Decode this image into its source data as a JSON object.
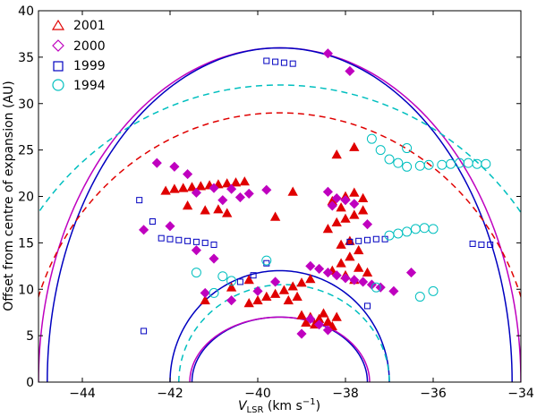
{
  "chart_data": {
    "type": "scatter",
    "title": "",
    "xlabel_main": "V",
    "xlabel_sub": "LSR",
    "xlabel_unit": " (km s",
    "xlabel_exp": "−1",
    "xlabel_close": ")",
    "ylabel": "Offset from centre of expansion (AU)",
    "xlim": [
      -45,
      -34
    ],
    "ylim": [
      0,
      40
    ],
    "xticks": [
      -44,
      -42,
      -40,
      -38,
      -36,
      -34
    ],
    "xtick_labels": [
      "−44",
      "−42",
      "−40",
      "−38",
      "−36",
      "−34"
    ],
    "yticks": [
      0,
      5,
      10,
      15,
      20,
      25,
      30,
      35,
      40
    ],
    "ytick_labels": [
      "0",
      "5",
      "10",
      "15",
      "20",
      "25",
      "30",
      "35",
      "40"
    ],
    "legend_position": "top-left",
    "legend": [
      {
        "label": "2001",
        "marker": "triangle",
        "color": "#e00000"
      },
      {
        "label": "2000",
        "marker": "diamond",
        "color": "#bf00bf"
      },
      {
        "label": "1999",
        "marker": "square",
        "color": "#0000c0"
      },
      {
        "label": "1994",
        "marker": "circle",
        "color": "#00bfbf"
      }
    ],
    "curves": [
      {
        "name": "outer-ellipse-magenta",
        "color": "#bf00bf",
        "style": "solid",
        "center": -39.5,
        "half_width": 5.5,
        "height": 36
      },
      {
        "name": "outer-ellipse-blue",
        "color": "#0000c0",
        "style": "solid",
        "center": -39.5,
        "half_width": 5.3,
        "height": 36
      },
      {
        "name": "outer-ellipse-cyan",
        "color": "#00bfbf",
        "style": "dashed",
        "center": -39.5,
        "half_width": 6.7,
        "height": 32
      },
      {
        "name": "outer-ellipse-red",
        "color": "#e00000",
        "style": "dashed",
        "center": -39.5,
        "half_width": 5.8,
        "height": 29
      },
      {
        "name": "inner-ellipse-blue",
        "color": "#0000c0",
        "style": "solid",
        "center": -39.5,
        "half_width": 2.5,
        "height": 12
      },
      {
        "name": "inner-ellipse-cyan",
        "color": "#00bfbf",
        "style": "dashed",
        "center": -39.4,
        "half_width": 2.4,
        "height": 10.5
      },
      {
        "name": "inner-ellipse-blue-small",
        "color": "#0000c0",
        "style": "solid",
        "center": -39.5,
        "half_width": 2.0,
        "height": 7
      },
      {
        "name": "inner-ellipse-magenta-small",
        "color": "#bf00bf",
        "style": "solid",
        "center": -39.5,
        "half_width": 2.05,
        "height": 7
      }
    ],
    "series": [
      {
        "name": "2001",
        "marker": "triangle",
        "color": "#e00000",
        "points": [
          [
            -42.1,
            20.6
          ],
          [
            -41.9,
            20.8
          ],
          [
            -41.7,
            20.9
          ],
          [
            -41.5,
            21.0
          ],
          [
            -41.3,
            21.1
          ],
          [
            -41.1,
            21.2
          ],
          [
            -40.9,
            21.3
          ],
          [
            -40.7,
            21.4
          ],
          [
            -40.5,
            21.5
          ],
          [
            -40.3,
            21.6
          ],
          [
            -41.6,
            19.0
          ],
          [
            -41.2,
            18.5
          ],
          [
            -40.9,
            18.6
          ],
          [
            -40.7,
            18.2
          ],
          [
            -38.4,
            6.5
          ],
          [
            -38.6,
            6.8
          ],
          [
            -38.8,
            7.0
          ],
          [
            -39.0,
            7.2
          ],
          [
            -38.2,
            7.0
          ],
          [
            -38.5,
            7.4
          ],
          [
            -38.7,
            6.2
          ],
          [
            -38.3,
            6.0
          ],
          [
            -38.9,
            6.4
          ],
          [
            -39.6,
            9.5
          ],
          [
            -39.4,
            9.9
          ],
          [
            -39.2,
            10.3
          ],
          [
            -39.0,
            10.7
          ],
          [
            -38.8,
            11.1
          ],
          [
            -39.8,
            9.2
          ],
          [
            -40.0,
            8.8
          ],
          [
            -40.2,
            8.5
          ],
          [
            -39.3,
            8.8
          ],
          [
            -39.1,
            9.2
          ],
          [
            -38.3,
            12.0
          ],
          [
            -38.1,
            12.8
          ],
          [
            -37.9,
            13.5
          ],
          [
            -37.7,
            12.3
          ],
          [
            -37.5,
            11.8
          ],
          [
            -38.0,
            11.5
          ],
          [
            -37.8,
            11.0
          ],
          [
            -38.4,
            16.5
          ],
          [
            -38.2,
            17.2
          ],
          [
            -38.0,
            17.6
          ],
          [
            -37.8,
            18.0
          ],
          [
            -37.6,
            18.5
          ],
          [
            -38.3,
            19.5
          ],
          [
            -38.0,
            20.0
          ],
          [
            -37.8,
            20.4
          ],
          [
            -37.6,
            19.8
          ],
          [
            -38.1,
            18.8
          ],
          [
            -37.9,
            15.2
          ],
          [
            -38.1,
            14.8
          ],
          [
            -37.7,
            14.2
          ],
          [
            -40.6,
            10.2
          ],
          [
            -40.2,
            11.0
          ],
          [
            -41.2,
            8.8
          ],
          [
            -39.2,
            20.5
          ],
          [
            -39.6,
            17.8
          ],
          [
            -38.2,
            24.5
          ],
          [
            -37.8,
            25.3
          ]
        ]
      },
      {
        "name": "2000",
        "marker": "diamond",
        "color": "#bf00bf",
        "points": [
          [
            -41.4,
            20.4
          ],
          [
            -41.0,
            20.9
          ],
          [
            -40.6,
            20.8
          ],
          [
            -40.2,
            20.3
          ],
          [
            -40.8,
            19.6
          ],
          [
            -40.4,
            19.9
          ],
          [
            -39.8,
            20.7
          ],
          [
            -38.4,
            20.5
          ],
          [
            -38.2,
            19.8
          ],
          [
            -38.0,
            19.6
          ],
          [
            -37.8,
            19.2
          ],
          [
            -38.3,
            19.0
          ],
          [
            -38.6,
            12.2
          ],
          [
            -38.4,
            11.8
          ],
          [
            -38.2,
            11.5
          ],
          [
            -38.0,
            11.2
          ],
          [
            -37.8,
            11.0
          ],
          [
            -37.6,
            10.8
          ],
          [
            -37.4,
            10.5
          ],
          [
            -37.2,
            10.2
          ],
          [
            -36.9,
            9.8
          ],
          [
            -38.8,
            12.5
          ],
          [
            -38.8,
            6.8
          ],
          [
            -38.6,
            6.2
          ],
          [
            -39.0,
            5.2
          ],
          [
            -38.4,
            5.6
          ],
          [
            -40.0,
            9.8
          ],
          [
            -39.6,
            10.8
          ],
          [
            -41.6,
            22.4
          ],
          [
            -41.9,
            23.2
          ],
          [
            -42.3,
            23.6
          ],
          [
            -42.6,
            16.4
          ],
          [
            -42.0,
            16.8
          ],
          [
            -41.4,
            14.2
          ],
          [
            -41.0,
            13.3
          ],
          [
            -38.4,
            35.4
          ],
          [
            -37.9,
            33.5
          ],
          [
            -41.2,
            9.6
          ],
          [
            -40.6,
            8.8
          ],
          [
            -37.5,
            17.0
          ],
          [
            -36.5,
            11.8
          ]
        ]
      },
      {
        "name": "1999",
        "marker": "square",
        "color": "#0000c0",
        "points": [
          [
            -42.2,
            15.5
          ],
          [
            -42.0,
            15.4
          ],
          [
            -41.8,
            15.3
          ],
          [
            -41.6,
            15.2
          ],
          [
            -41.4,
            15.1
          ],
          [
            -41.2,
            15.0
          ],
          [
            -41.0,
            14.8
          ],
          [
            -37.9,
            15.1
          ],
          [
            -37.7,
            15.2
          ],
          [
            -37.5,
            15.3
          ],
          [
            -37.3,
            15.4
          ],
          [
            -37.1,
            15.4
          ],
          [
            -39.8,
            34.6
          ],
          [
            -39.6,
            34.5
          ],
          [
            -39.4,
            34.4
          ],
          [
            -39.2,
            34.3
          ],
          [
            -35.1,
            14.9
          ],
          [
            -34.9,
            14.8
          ],
          [
            -34.7,
            14.8
          ],
          [
            -42.7,
            19.6
          ],
          [
            -42.4,
            17.3
          ],
          [
            -42.6,
            5.5
          ],
          [
            -40.4,
            10.8
          ],
          [
            -40.1,
            11.5
          ],
          [
            -39.8,
            12.8
          ],
          [
            -37.5,
            8.2
          ]
        ]
      },
      {
        "name": "1994",
        "marker": "circle",
        "color": "#00bfbf",
        "points": [
          [
            -36.8,
            16.0
          ],
          [
            -36.6,
            16.2
          ],
          [
            -36.4,
            16.5
          ],
          [
            -37.0,
            15.8
          ],
          [
            -36.2,
            16.6
          ],
          [
            -36.0,
            16.5
          ],
          [
            -35.8,
            23.4
          ],
          [
            -35.6,
            23.5
          ],
          [
            -35.4,
            23.6
          ],
          [
            -35.2,
            23.6
          ],
          [
            -35.0,
            23.5
          ],
          [
            -34.8,
            23.5
          ],
          [
            -36.1,
            23.4
          ],
          [
            -36.3,
            23.3
          ],
          [
            -36.6,
            23.2
          ],
          [
            -36.8,
            23.6
          ],
          [
            -37.0,
            24.0
          ],
          [
            -37.2,
            25.0
          ],
          [
            -37.4,
            26.2
          ],
          [
            -40.8,
            11.4
          ],
          [
            -40.6,
            10.9
          ],
          [
            -41.4,
            11.8
          ],
          [
            -41.0,
            9.6
          ],
          [
            -37.3,
            10.2
          ],
          [
            -36.3,
            9.2
          ],
          [
            -36.0,
            9.8
          ],
          [
            -39.8,
            13.1
          ],
          [
            -36.6,
            25.2
          ]
        ]
      }
    ]
  }
}
